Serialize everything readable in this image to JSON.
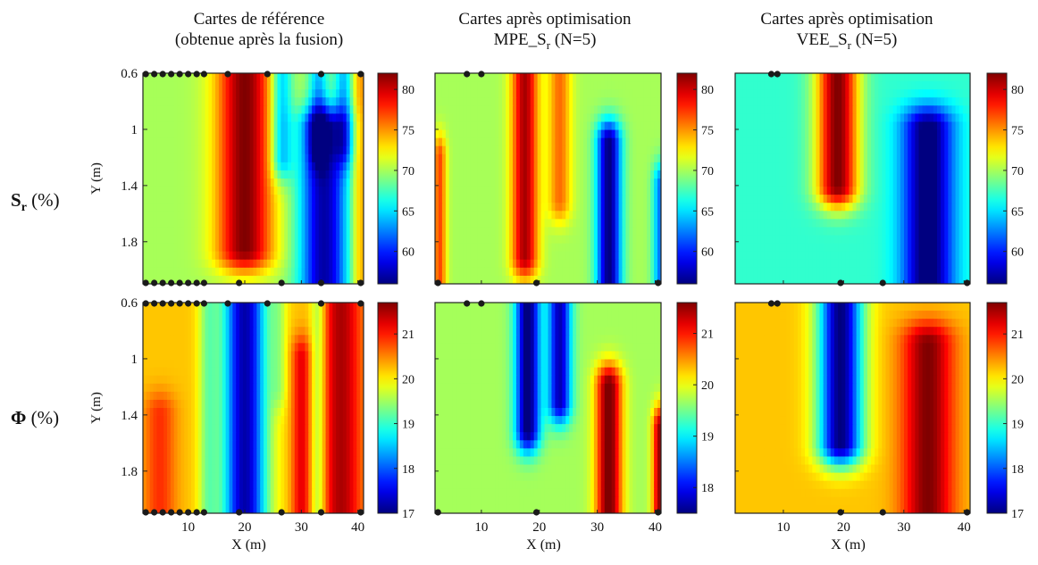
{
  "columns": [
    {
      "title_line1": "Cartes de référence",
      "title_line2": "(obtenue après la fusion)"
    },
    {
      "title_line1": "Cartes après optimisation",
      "title_line2_prefix": "MPE_S",
      "title_line2_sub": "r",
      "title_line2_suffix": " (N=5)"
    },
    {
      "title_line1": "Cartes après optimisation",
      "title_line2_prefix": "VEE_S",
      "title_line2_sub": "r",
      "title_line2_suffix": " (N=5)"
    }
  ],
  "rows": [
    {
      "symbol": "S",
      "sub": "r",
      "unit": "(%)"
    },
    {
      "symbol": "Φ",
      "sub": "",
      "unit": "(%)"
    }
  ],
  "chart_data": {
    "type": "heatmap",
    "colormap": "jet",
    "xlabel": "X (m)",
    "ylabel": "Y (m)",
    "x_ticks": [
      10,
      20,
      30,
      40
    ],
    "y_ticks": [
      0.6,
      1,
      1.4,
      1.8
    ],
    "xlim": [
      2,
      41
    ],
    "ylim": [
      0.6,
      2.1
    ],
    "y_reversed": true,
    "panels": [
      {
        "row": 0,
        "col": 0,
        "variable": "Sr",
        "clim": [
          56,
          82
        ],
        "colorbar_ticks": [
          60,
          65,
          70,
          75,
          80
        ],
        "base": 70,
        "features": [
          {
            "x": 20,
            "w": 3.5,
            "amp": 12,
            "y_from": 0.6,
            "y_to": 1.85
          },
          {
            "x": 26.5,
            "w": 1.3,
            "amp": -7,
            "y_from": 0.6,
            "y_to": 1.2
          },
          {
            "x": 34,
            "w": 3,
            "amp": -13,
            "y_from": 1.0,
            "y_to": 2.1
          },
          {
            "x": 33,
            "w": 1.2,
            "amp": -6,
            "y_from": 0.6,
            "y_to": 1.1
          },
          {
            "x": 37.5,
            "w": 1.2,
            "amp": -6,
            "y_from": 0.6,
            "y_to": 1.1
          },
          {
            "x": 40.5,
            "w": 1.2,
            "amp": 5,
            "y_from": 0.6,
            "y_to": 2.1
          }
        ],
        "points_top_x": [
          2.5,
          4,
          5.5,
          7,
          8.5,
          10,
          11.5,
          12.8,
          17,
          24,
          33.5,
          40.5
        ],
        "points_bottom_x": [
          2.5,
          4,
          5.5,
          7,
          8.5,
          10,
          11.5,
          12.8,
          19,
          26.5,
          33.5,
          40.5
        ]
      },
      {
        "row": 0,
        "col": 1,
        "variable": "Sr",
        "clim": [
          56,
          82
        ],
        "colorbar_ticks": [
          60,
          65,
          70,
          75,
          80
        ],
        "base": 70,
        "features": [
          {
            "x": 17.5,
            "w": 1.6,
            "amp": 11,
            "y_from": 0.6,
            "y_to": 1.9
          },
          {
            "x": 23.5,
            "w": 1.4,
            "amp": 6,
            "y_from": 0.6,
            "y_to": 1.5
          },
          {
            "x": 32,
            "w": 1.5,
            "amp": -14,
            "y_from": 1.1,
            "y_to": 2.1
          },
          {
            "x": 2.8,
            "w": 0.8,
            "amp": 7,
            "y_from": 1.2,
            "y_to": 2.1
          },
          {
            "x": 41,
            "w": 1.0,
            "amp": -8,
            "y_from": 1.4,
            "y_to": 2.1
          }
        ],
        "points_top_x": [
          7.5,
          10
        ],
        "points_bottom_x": [
          2.5,
          19.5,
          40.5
        ]
      },
      {
        "row": 0,
        "col": 2,
        "variable": "Sr",
        "clim": [
          56,
          82
        ],
        "colorbar_ticks": [
          60,
          65,
          70,
          75,
          80
        ],
        "base": 67,
        "features": [
          {
            "x": 19,
            "w": 2.5,
            "amp": 15,
            "y_from": 0.6,
            "y_to": 1.4
          },
          {
            "x": 34,
            "w": 3,
            "amp": -12,
            "y_from": 1.0,
            "y_to": 2.1
          }
        ],
        "points_top_x": [
          8,
          9
        ],
        "points_bottom_x": [
          19.5,
          26.5,
          40.5
        ]
      },
      {
        "row": 1,
        "col": 0,
        "variable": "Phi",
        "clim": [
          17,
          21.7
        ],
        "colorbar_ticks": [
          17,
          18,
          19,
          20,
          21
        ],
        "base": 20.2,
        "features": [
          {
            "x": 20,
            "w": 2.8,
            "amp": -3,
            "y_from": 0.6,
            "y_to": 2.1
          },
          {
            "x": 13.5,
            "w": 1.2,
            "amp": -0.8,
            "y_from": 0.6,
            "y_to": 2.1
          },
          {
            "x": 37,
            "w": 2.6,
            "amp": 1.3,
            "y_from": 0.6,
            "y_to": 2.1
          },
          {
            "x": 30,
            "w": 1.2,
            "amp": 1.0,
            "y_from": 1.0,
            "y_to": 2.1
          },
          {
            "x": 33,
            "w": 1.0,
            "amp": -0.9,
            "y_from": 0.6,
            "y_to": 2.1
          },
          {
            "x": 5,
            "w": 2,
            "amp": 0.7,
            "y_from": 1.4,
            "y_to": 2.1
          },
          {
            "x": 26,
            "w": 1,
            "amp": -0.5,
            "y_from": 0.6,
            "y_to": 1.2
          }
        ],
        "points_top_x": [
          2.5,
          4,
          5.5,
          7,
          8.5,
          10,
          11.5,
          12.8,
          17,
          24,
          33.5,
          40.5
        ],
        "points_bottom_x": [
          2.5,
          4,
          5.5,
          7,
          8.5,
          10,
          11.5,
          12.8,
          19,
          26.5,
          33.5,
          40.5
        ]
      },
      {
        "row": 1,
        "col": 1,
        "variable": "Phi",
        "clim": [
          17.5,
          21.6
        ],
        "colorbar_ticks": [
          18,
          19,
          20,
          21
        ],
        "base": 19.7,
        "features": [
          {
            "x": 18,
            "w": 1.5,
            "amp": -2.3,
            "y_from": 0.6,
            "y_to": 1.5
          },
          {
            "x": 23.5,
            "w": 1.4,
            "amp": -2.0,
            "y_from": 0.6,
            "y_to": 1.3
          },
          {
            "x": 32,
            "w": 1.6,
            "amp": 2.0,
            "y_from": 1.2,
            "y_to": 2.1
          },
          {
            "x": 40.8,
            "w": 0.9,
            "amp": 1.8,
            "y_from": 1.5,
            "y_to": 2.1
          }
        ],
        "points_top_x": [
          7.5,
          10
        ],
        "points_bottom_x": [
          2.5,
          19.5,
          40.5
        ]
      },
      {
        "row": 1,
        "col": 2,
        "variable": "Phi",
        "clim": [
          17,
          21.7
        ],
        "colorbar_ticks": [
          17,
          18,
          19,
          20,
          21
        ],
        "base": 20.2,
        "features": [
          {
            "x": 19.5,
            "w": 2.6,
            "amp": -3.2,
            "y_from": 0.6,
            "y_to": 1.6
          },
          {
            "x": 34,
            "w": 3.0,
            "amp": 1.5,
            "y_from": 0.9,
            "y_to": 2.1
          }
        ],
        "points_top_x": [
          8,
          9
        ],
        "points_bottom_x": [
          19.5,
          26.5,
          40.5
        ]
      }
    ]
  }
}
